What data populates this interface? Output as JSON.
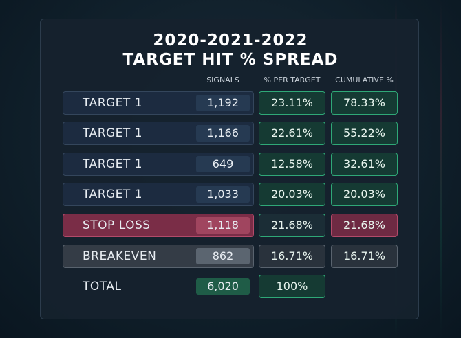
{
  "title": {
    "line1": "2020-2021-2022",
    "line2": "TARGET HIT % SPREAD"
  },
  "columns": {
    "signals": "SIGNALS",
    "per_target": "% PER TARGET",
    "cumulative": "CUMULATIVE %"
  },
  "rows": [
    {
      "label": "TARGET 1",
      "signals": "1,192",
      "per_target": "23.11%",
      "cumulative": "78.33%"
    },
    {
      "label": "TARGET 1",
      "signals": "1,166",
      "per_target": "22.61%",
      "cumulative": "55.22%"
    },
    {
      "label": "TARGET 1",
      "signals": "649",
      "per_target": "12.58%",
      "cumulative": "32.61%"
    },
    {
      "label": "TARGET 1",
      "signals": "1,033",
      "per_target": "20.03%",
      "cumulative": "20.03%"
    },
    {
      "label": "STOP LOSS",
      "signals": "1,118",
      "per_target": "21.68%",
      "cumulative": "21.68%"
    },
    {
      "label": "BREAKEVEN",
      "signals": "862",
      "per_target": "16.71%",
      "cumulative": "16.71%"
    }
  ],
  "total": {
    "label": "TOTAL",
    "signals": "6,020",
    "per_target": "100%"
  },
  "colors": {
    "green": "#2fa877",
    "red": "#b34a6a",
    "gray": "#59636e",
    "navy": "#1c2b40"
  }
}
